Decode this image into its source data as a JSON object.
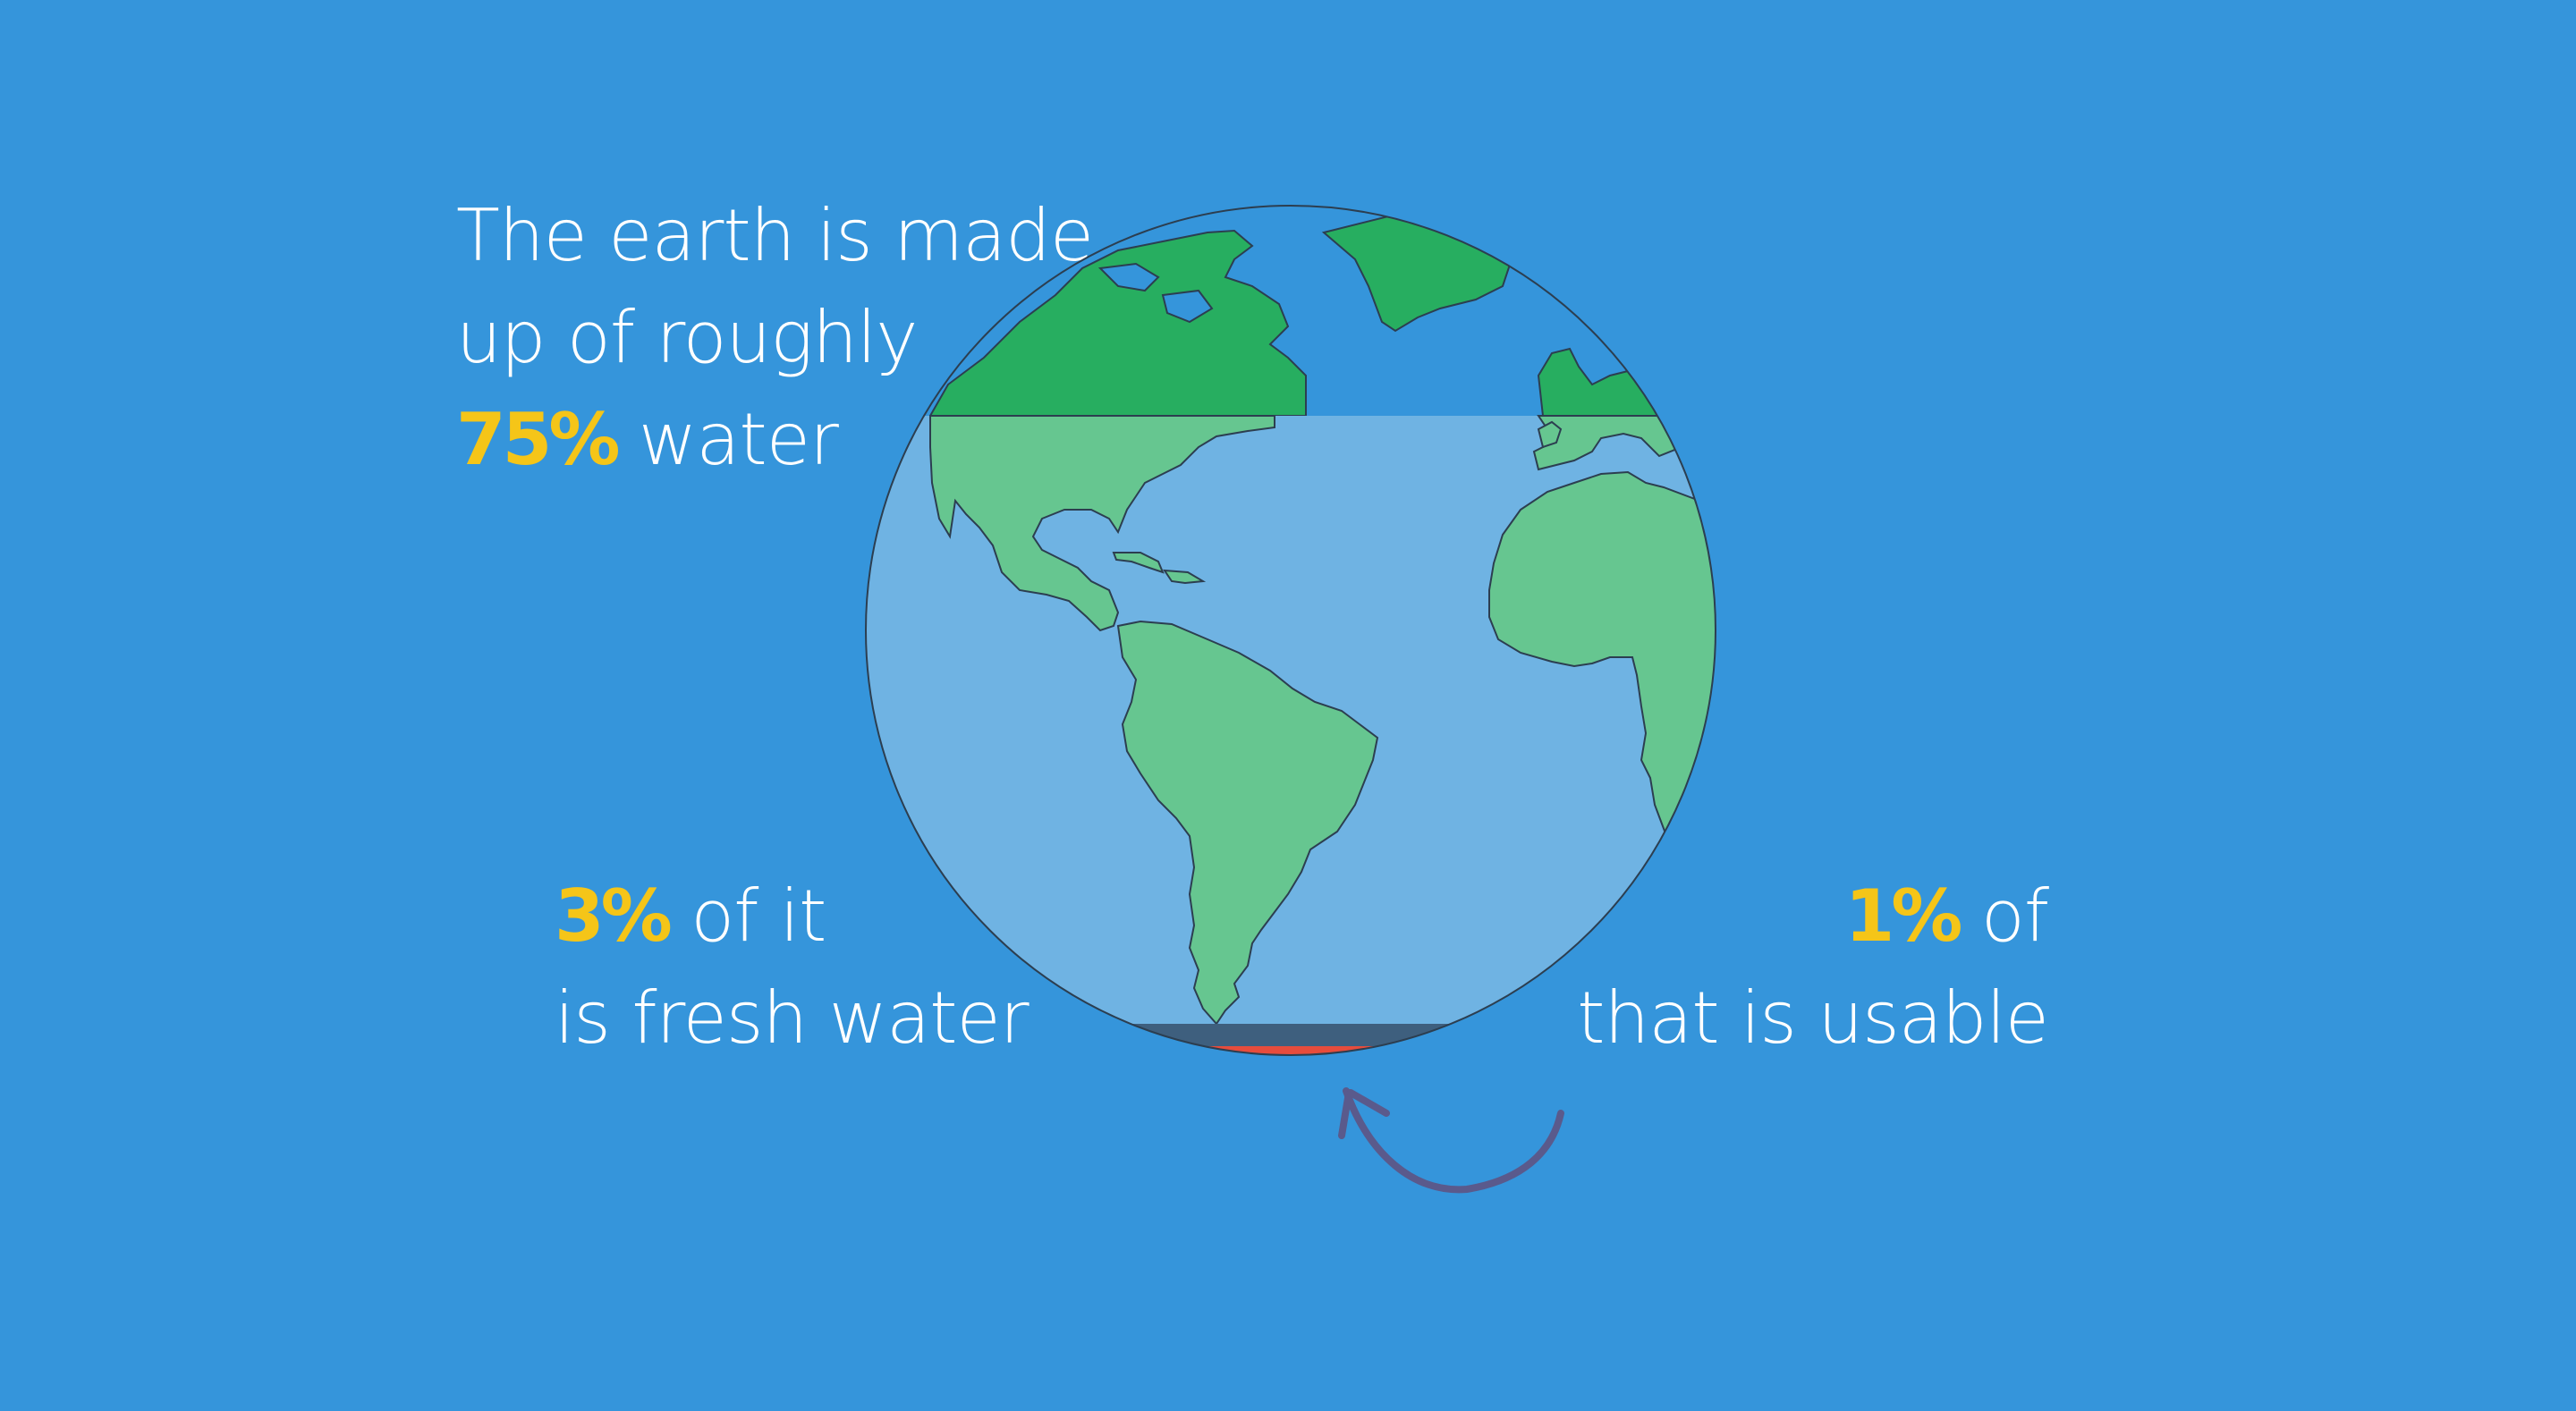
{
  "stat_75": {
    "line1": "The earth is made",
    "line2": "up of roughly",
    "pct": "75%",
    "after": " water"
  },
  "stat_3": {
    "pct": "3%",
    "after": " of it",
    "line2": "is fresh water"
  },
  "stat_1": {
    "pct": "1%",
    "after": " of",
    "line2": "that is usable"
  },
  "colors": {
    "background": "#3595db",
    "ocean": "#6fb3e3",
    "land": "#66c690",
    "land_dark": "#27ae60",
    "highlight": "#f5c518",
    "fresh_water": "#3e5f7e",
    "usable_water": "#e74c3c",
    "arrow": "#5a5a8c"
  },
  "icons": [
    "earth-globe-icon",
    "curved-arrow-icon"
  ]
}
